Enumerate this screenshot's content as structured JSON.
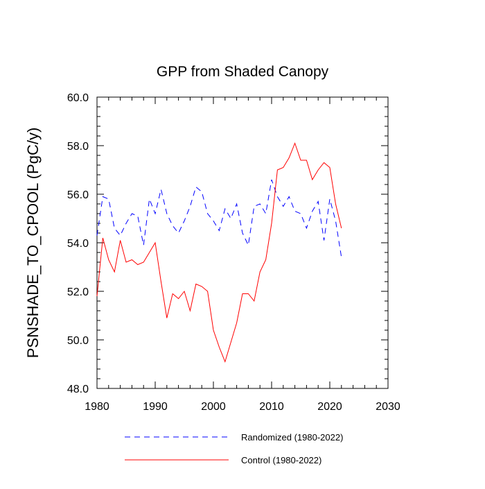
{
  "chart_data": {
    "type": "line",
    "title": "GPP from Shaded Canopy",
    "xlabel": "",
    "ylabel": "PSNSHADE_TO_CPOOL  (PgC/y)",
    "xlim": [
      1980,
      2030
    ],
    "ylim": [
      48,
      60
    ],
    "x_ticks": [
      "1980",
      "1990",
      "2000",
      "2010",
      "2020",
      "2030"
    ],
    "y_ticks": [
      "48.0",
      "50.0",
      "52.0",
      "54.0",
      "56.0",
      "58.0",
      "60.0"
    ],
    "x": [
      1980,
      1981,
      1982,
      1983,
      1984,
      1985,
      1986,
      1987,
      1988,
      1989,
      1990,
      1991,
      1992,
      1993,
      1994,
      1995,
      1996,
      1997,
      1998,
      1999,
      2000,
      2001,
      2002,
      2003,
      2004,
      2005,
      2006,
      2007,
      2008,
      2009,
      2010,
      2011,
      2012,
      2013,
      2014,
      2015,
      2016,
      2017,
      2018,
      2019,
      2020,
      2021,
      2022
    ],
    "series": [
      {
        "name": "Randomized (1980-2022)",
        "color": "#0000ff",
        "dash": "dashed",
        "values": [
          54.3,
          55.9,
          55.8,
          54.6,
          54.3,
          54.8,
          55.2,
          55.1,
          53.9,
          55.8,
          55.2,
          56.2,
          55.2,
          54.7,
          54.4,
          54.9,
          55.5,
          56.3,
          56.1,
          55.2,
          54.9,
          54.5,
          55.4,
          55.0,
          55.6,
          54.4,
          53.9,
          55.5,
          55.6,
          55.2,
          56.6,
          55.9,
          55.5,
          55.9,
          55.3,
          55.2,
          54.6,
          55.3,
          55.7,
          54.1,
          55.8,
          54.9,
          53.4
        ]
      },
      {
        "name": "Control (1980-2022)",
        "color": "#ff0000",
        "dash": "solid",
        "values": [
          51.8,
          54.2,
          53.3,
          52.8,
          54.1,
          53.2,
          53.3,
          53.1,
          53.2,
          53.6,
          54.0,
          52.4,
          50.9,
          51.9,
          51.7,
          52.0,
          51.2,
          52.3,
          52.2,
          52.0,
          50.4,
          49.7,
          49.1,
          49.9,
          50.7,
          51.9,
          51.9,
          51.6,
          52.8,
          53.3,
          54.8,
          57.0,
          57.1,
          57.5,
          58.1,
          57.4,
          57.4,
          56.6,
          57.0,
          57.3,
          57.1,
          55.6,
          54.6
        ]
      }
    ],
    "legend": [
      {
        "label": "Randomized (1980-2022)"
      },
      {
        "label": "Control (1980-2022)"
      }
    ]
  }
}
